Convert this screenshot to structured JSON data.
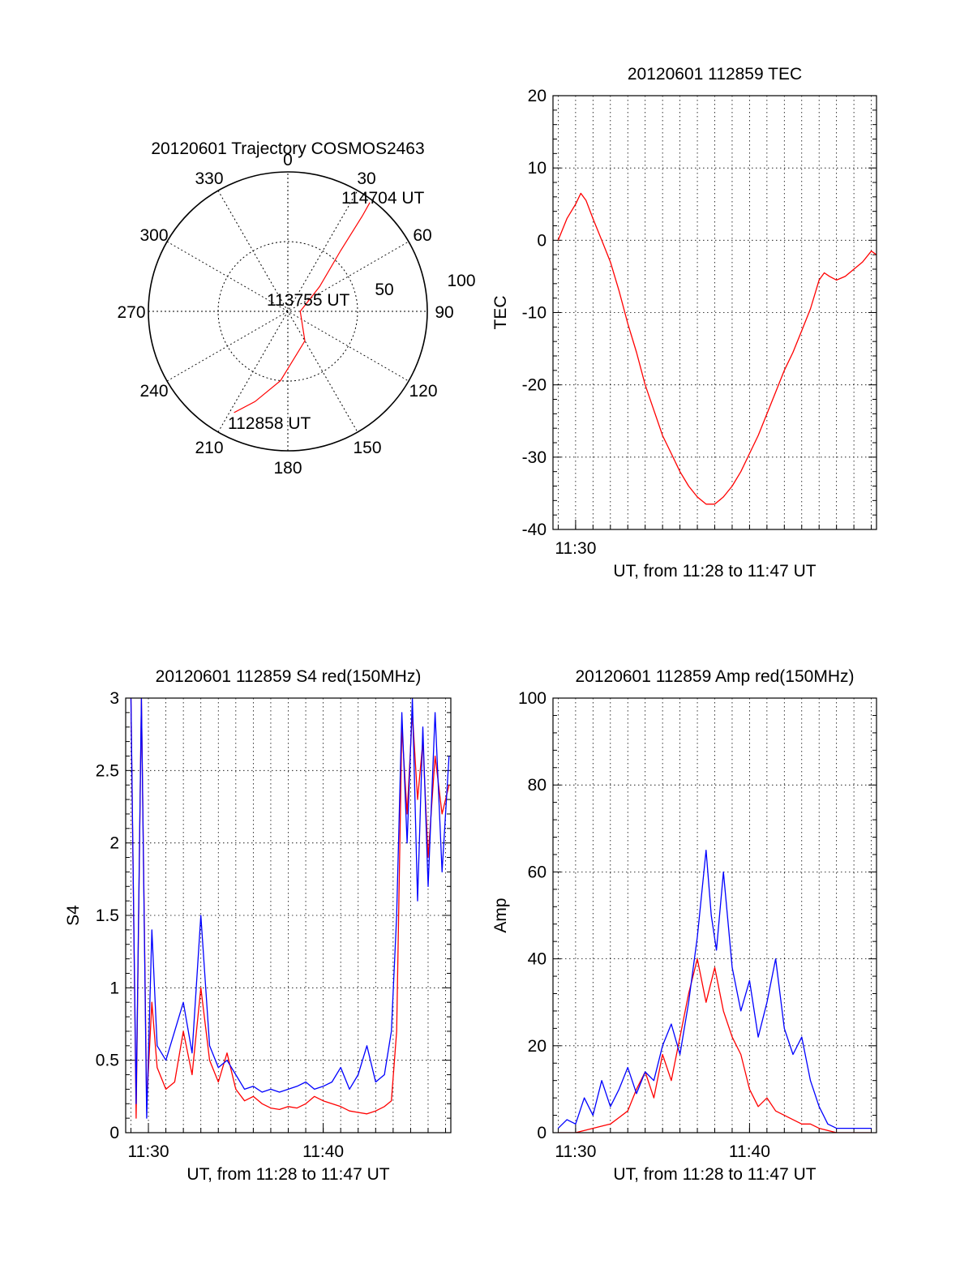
{
  "chart_data": [
    {
      "type": "polar",
      "title": "20120601 Trajectory COSMOS2463",
      "angle_labels": [
        "0",
        "30",
        "60",
        "90",
        "120",
        "150",
        "180",
        "210",
        "240",
        "270",
        "300",
        "330"
      ],
      "radial_labels": [
        "50",
        "100"
      ],
      "point_labels": [
        "114704 UT",
        "113755 UT",
        "112858 UT"
      ],
      "series": [
        {
          "color": "#ff0000",
          "points": [
            [
              208,
              74
            ],
            [
              200,
              62
            ],
            [
              186,
              45
            ],
            [
              150,
              22
            ],
            [
              90,
              8
            ],
            [
              52,
              26
            ],
            [
              41,
              52
            ],
            [
              38,
              78
            ],
            [
              37,
              88
            ]
          ]
        }
      ]
    },
    {
      "type": "line",
      "title": "20120601 112859 TEC",
      "xlabel": "UT, from 11:28 to 11:47 UT",
      "ylabel": "TEC",
      "xlim": [
        28.7,
        47.3
      ],
      "ylim": [
        -40,
        20
      ],
      "x_ticks": [
        {
          "value": 30,
          "label": "11:30"
        }
      ],
      "y_ticks": [
        -40,
        -30,
        -20,
        -10,
        0,
        10,
        20
      ],
      "y_tick_labels": [
        "-40",
        "-30",
        "-20",
        "-10",
        "0",
        "10",
        "20"
      ],
      "grid": true,
      "series": [
        {
          "color": "#ff0000",
          "x": [
            29.0,
            29.5,
            30.0,
            30.3,
            30.6,
            31.0,
            31.5,
            32.0,
            32.5,
            33.0,
            33.5,
            34.0,
            34.5,
            35.0,
            35.5,
            36.0,
            36.5,
            37.0,
            37.5,
            38.0,
            38.5,
            39.0,
            39.5,
            40.0,
            40.5,
            41.0,
            41.5,
            42.0,
            42.5,
            43.0,
            43.5,
            44.0,
            44.3,
            44.6,
            45.0,
            45.5,
            46.0,
            46.5,
            47.0,
            47.3
          ],
          "y": [
            0,
            3,
            5,
            6.5,
            5.5,
            3,
            0,
            -3,
            -7,
            -11.5,
            -15.5,
            -20,
            -23.5,
            -27,
            -29.5,
            -32,
            -34,
            -35.5,
            -36.5,
            -36.5,
            -35.5,
            -34,
            -32,
            -29.5,
            -27,
            -24,
            -21,
            -18,
            -15.5,
            -12.5,
            -9.5,
            -5.5,
            -4.5,
            -5,
            -5.5,
            -5,
            -4,
            -3,
            -1.5,
            -2
          ]
        }
      ]
    },
    {
      "type": "line",
      "title": "20120601 112859 S4 red(150MHz)",
      "xlabel": "UT, from 11:28 to 11:47 UT",
      "ylabel": "S4",
      "xlim": [
        28.7,
        47.3
      ],
      "ylim": [
        0,
        3
      ],
      "x_ticks": [
        {
          "value": 30,
          "label": "11:30"
        },
        {
          "value": 40,
          "label": "11:40"
        }
      ],
      "y_ticks": [
        0,
        0.5,
        1,
        1.5,
        2,
        2.5,
        3
      ],
      "y_tick_labels": [
        "0",
        "0.5",
        "1",
        "1.5",
        "2",
        "2.5",
        "3"
      ],
      "grid": true,
      "series": [
        {
          "color": "#ff0000",
          "x": [
            29.0,
            29.3,
            29.6,
            29.9,
            30.2,
            30.5,
            31.0,
            31.5,
            32.0,
            32.5,
            33.0,
            33.5,
            34.0,
            34.5,
            35.0,
            35.5,
            36.0,
            36.5,
            37.0,
            37.5,
            38.0,
            38.5,
            39.0,
            39.5,
            40.0,
            40.5,
            41.0,
            41.5,
            42.0,
            42.5,
            43.0,
            43.5,
            43.9,
            44.2,
            44.5,
            44.8,
            45.1,
            45.4,
            45.7,
            46.0,
            46.4,
            46.8,
            47.2
          ],
          "y": [
            3,
            0.1,
            3,
            0.2,
            0.9,
            0.45,
            0.3,
            0.35,
            0.7,
            0.4,
            1.0,
            0.5,
            0.35,
            0.55,
            0.3,
            0.22,
            0.25,
            0.2,
            0.17,
            0.16,
            0.18,
            0.17,
            0.2,
            0.25,
            0.22,
            0.2,
            0.18,
            0.15,
            0.14,
            0.13,
            0.15,
            0.18,
            0.22,
            0.7,
            2.8,
            2.2,
            2.9,
            2.3,
            2.7,
            1.9,
            2.6,
            2.2,
            2.4
          ]
        },
        {
          "color": "#0000ff",
          "x": [
            29.0,
            29.3,
            29.6,
            29.9,
            30.2,
            30.5,
            31.0,
            31.5,
            32.0,
            32.5,
            33.0,
            33.5,
            34.0,
            34.5,
            35.0,
            35.5,
            36.0,
            36.5,
            37.0,
            37.5,
            38.0,
            38.5,
            39.0,
            39.5,
            40.0,
            40.5,
            41.0,
            41.5,
            42.0,
            42.5,
            43.0,
            43.5,
            43.9,
            44.2,
            44.5,
            44.8,
            45.1,
            45.4,
            45.7,
            46.0,
            46.4,
            46.8,
            47.2
          ],
          "y": [
            3,
            0.2,
            3,
            0.1,
            1.4,
            0.6,
            0.5,
            0.7,
            0.9,
            0.55,
            1.5,
            0.6,
            0.45,
            0.5,
            0.4,
            0.3,
            0.32,
            0.28,
            0.3,
            0.28,
            0.3,
            0.32,
            0.35,
            0.3,
            0.32,
            0.35,
            0.45,
            0.3,
            0.4,
            0.6,
            0.35,
            0.4,
            0.7,
            1.5,
            2.9,
            2.0,
            3.0,
            1.6,
            2.8,
            1.7,
            2.9,
            1.8,
            2.6
          ]
        }
      ]
    },
    {
      "type": "line",
      "title": "20120601 112859 Amp red(150MHz)",
      "xlabel": "UT, from 11:28 to 11:47 UT",
      "ylabel": "Amp",
      "xlim": [
        28.7,
        47.3
      ],
      "ylim": [
        0,
        100
      ],
      "x_ticks": [
        {
          "value": 30,
          "label": "11:30"
        },
        {
          "value": 40,
          "label": "11:40"
        }
      ],
      "y_ticks": [
        0,
        20,
        40,
        60,
        80,
        100
      ],
      "y_tick_labels": [
        "0",
        "20",
        "40",
        "60",
        "80",
        "100"
      ],
      "grid": true,
      "series": [
        {
          "color": "#ff0000",
          "x": [
            29.0,
            30.0,
            31.0,
            32.0,
            33.0,
            33.5,
            34.0,
            34.5,
            35.0,
            35.5,
            36.0,
            36.5,
            37.0,
            37.5,
            38.0,
            38.5,
            39.0,
            39.5,
            40.0,
            40.5,
            41.0,
            41.5,
            42.0,
            42.5,
            43.0,
            43.5,
            44.0,
            45.0,
            46.0,
            47.0
          ],
          "y": [
            0,
            0,
            1,
            2,
            5,
            10,
            14,
            8,
            18,
            12,
            22,
            32,
            40,
            30,
            38,
            28,
            22,
            18,
            10,
            6,
            8,
            5,
            4,
            3,
            2,
            2,
            1,
            0,
            0,
            0
          ]
        },
        {
          "color": "#0000ff",
          "x": [
            29.0,
            29.5,
            30.0,
            30.5,
            31.0,
            31.5,
            32.0,
            32.5,
            33.0,
            33.5,
            34.0,
            34.5,
            35.0,
            35.5,
            36.0,
            36.5,
            37.0,
            37.5,
            37.8,
            38.1,
            38.5,
            39.0,
            39.5,
            40.0,
            40.5,
            41.0,
            41.5,
            42.0,
            42.5,
            43.0,
            43.5,
            44.0,
            44.5,
            45.0,
            46.0,
            47.0
          ],
          "y": [
            1,
            3,
            2,
            8,
            4,
            12,
            6,
            10,
            15,
            9,
            14,
            12,
            20,
            25,
            18,
            30,
            45,
            65,
            50,
            42,
            60,
            38,
            28,
            35,
            22,
            30,
            40,
            24,
            18,
            22,
            12,
            6,
            2,
            1,
            1,
            1
          ]
        }
      ]
    }
  ]
}
